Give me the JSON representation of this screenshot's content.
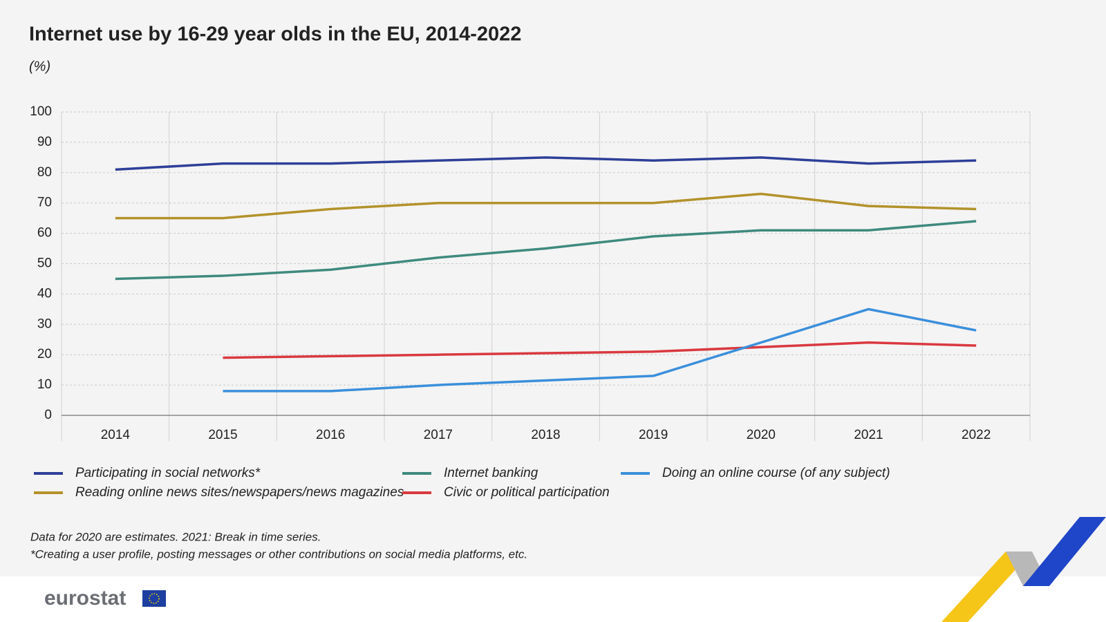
{
  "chart_data": {
    "type": "line",
    "title": "Internet use by 16-29 year olds in the EU, 2014-2022",
    "subtitle": "(%)",
    "categories": [
      "2014",
      "2015",
      "2016",
      "2017",
      "2018",
      "2019",
      "2020",
      "2021",
      "2022"
    ],
    "series": [
      {
        "name": "Participating in social networks*",
        "color": "#2e3f98",
        "values": [
          81,
          83,
          83,
          84,
          85,
          84,
          85,
          83,
          84
        ]
      },
      {
        "name": "Reading online news sites/newspapers/news magazines",
        "color": "#b3922b",
        "values": [
          65,
          65,
          68,
          70,
          70,
          70,
          73,
          69,
          68
        ]
      },
      {
        "name": "Internet banking",
        "color": "#3f8a7e",
        "values": [
          45,
          46,
          48,
          52,
          55,
          59,
          61,
          61,
          64
        ]
      },
      {
        "name": "Civic or political participation",
        "color": "#d9393f",
        "values": [
          null,
          19,
          19.5,
          20,
          20.5,
          21,
          22.5,
          24,
          23
        ]
      },
      {
        "name": "Doing an online course (of any subject)",
        "color": "#3b8fdb",
        "values": [
          null,
          8,
          8,
          10,
          11.5,
          13,
          24,
          35,
          28
        ]
      }
    ],
    "ylim": [
      0,
      100
    ],
    "yticks": [
      0,
      10,
      20,
      30,
      40,
      50,
      60,
      70,
      80,
      90,
      100
    ],
    "grid": true,
    "notes": [
      "Data for 2020 are estimates. 2021: Break in time series.",
      "*Creating a user profile, posting messages or other contributions on social media platforms, etc."
    ],
    "source": "eurostat"
  }
}
